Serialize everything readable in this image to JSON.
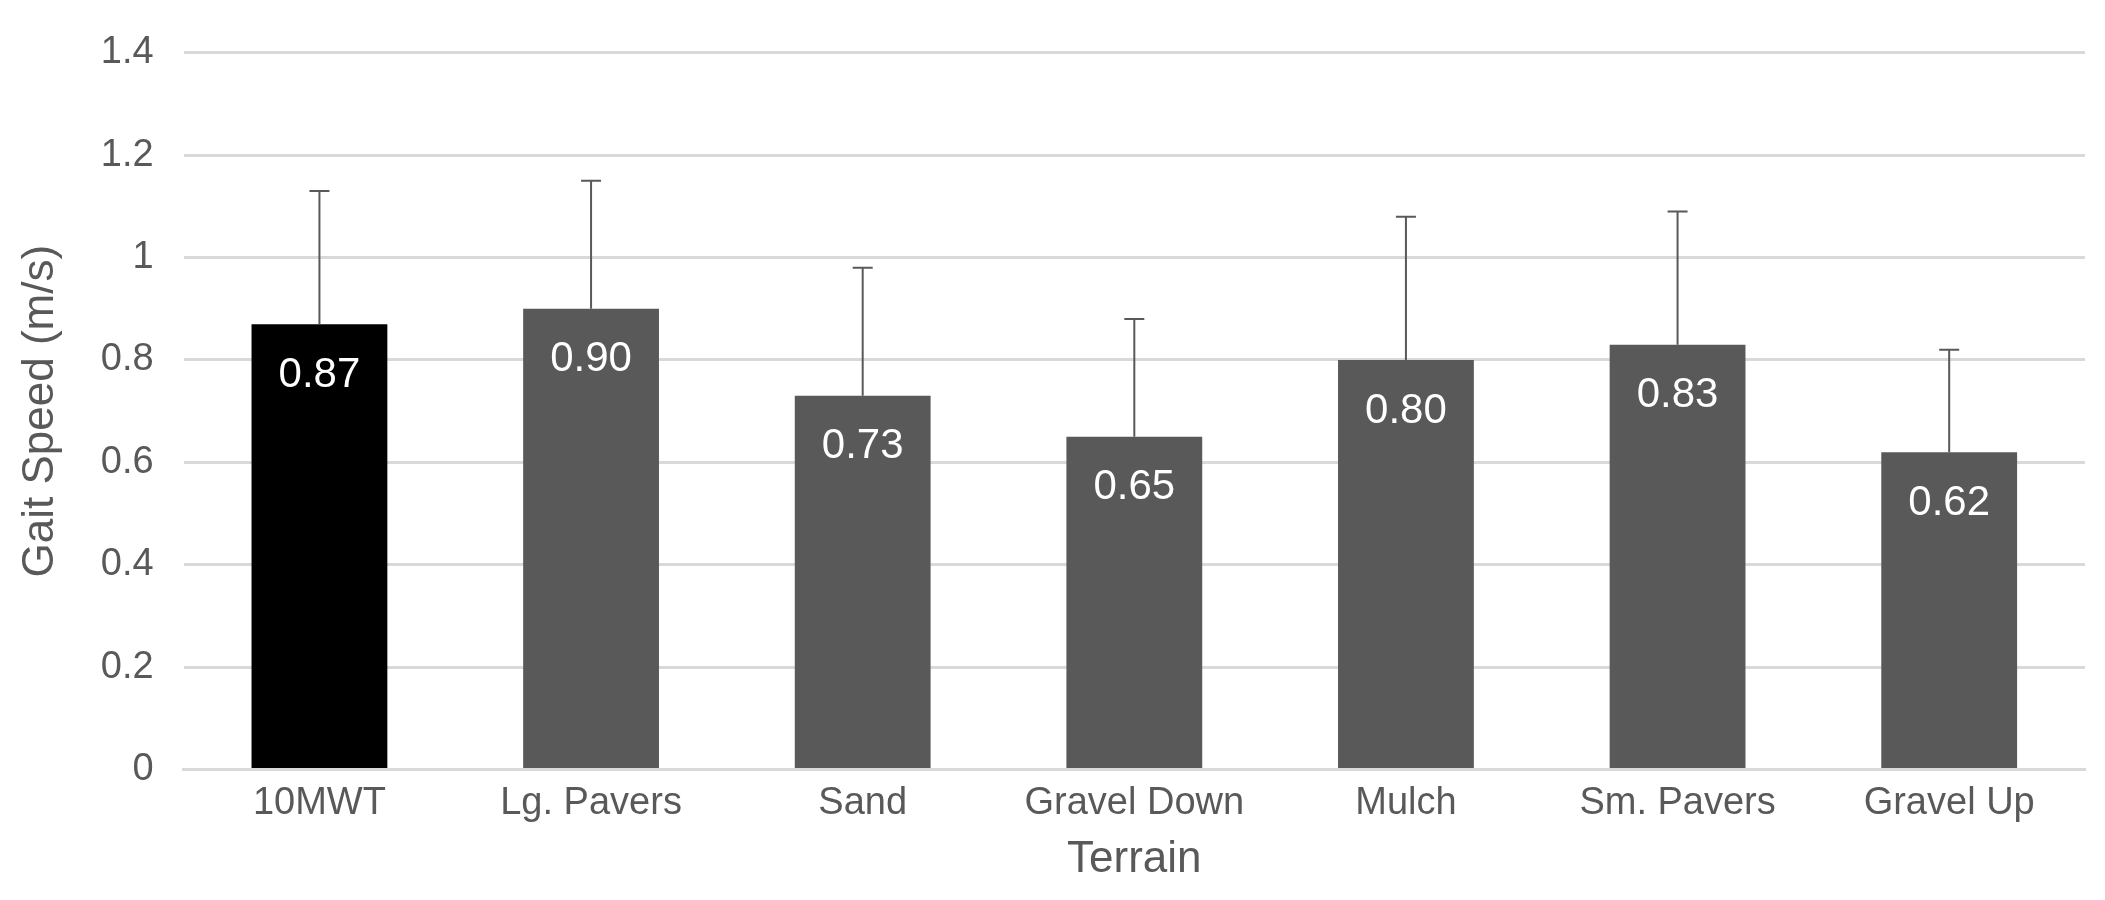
{
  "chart_data": {
    "type": "bar",
    "xlabel": "Terrain",
    "ylabel": "Gait Speed (m/s)",
    "categories": [
      "10MWT",
      "Lg. Pavers",
      "Sand",
      "Gravel Down",
      "Mulch",
      "Sm. Pavers",
      "Gravel Up"
    ],
    "values": [
      0.87,
      0.9,
      0.73,
      0.65,
      0.8,
      0.83,
      0.62
    ],
    "colors": [
      "#000000",
      "#595959",
      "#595959",
      "#595959",
      "#595959",
      "#595959",
      "#595959"
    ],
    "errors": [
      0.26,
      0.25,
      0.25,
      0.23,
      0.28,
      0.26,
      0.2
    ],
    "value_labels": [
      "0.87",
      "0.90",
      "0.73",
      "0.65",
      "0.80",
      "0.83",
      "0.62"
    ],
    "ylim": [
      0,
      1.4
    ],
    "yticks": [
      0,
      0.2,
      0.4,
      0.6,
      0.8,
      1,
      1.2,
      1.4
    ],
    "grid": "y",
    "legend": false
  }
}
